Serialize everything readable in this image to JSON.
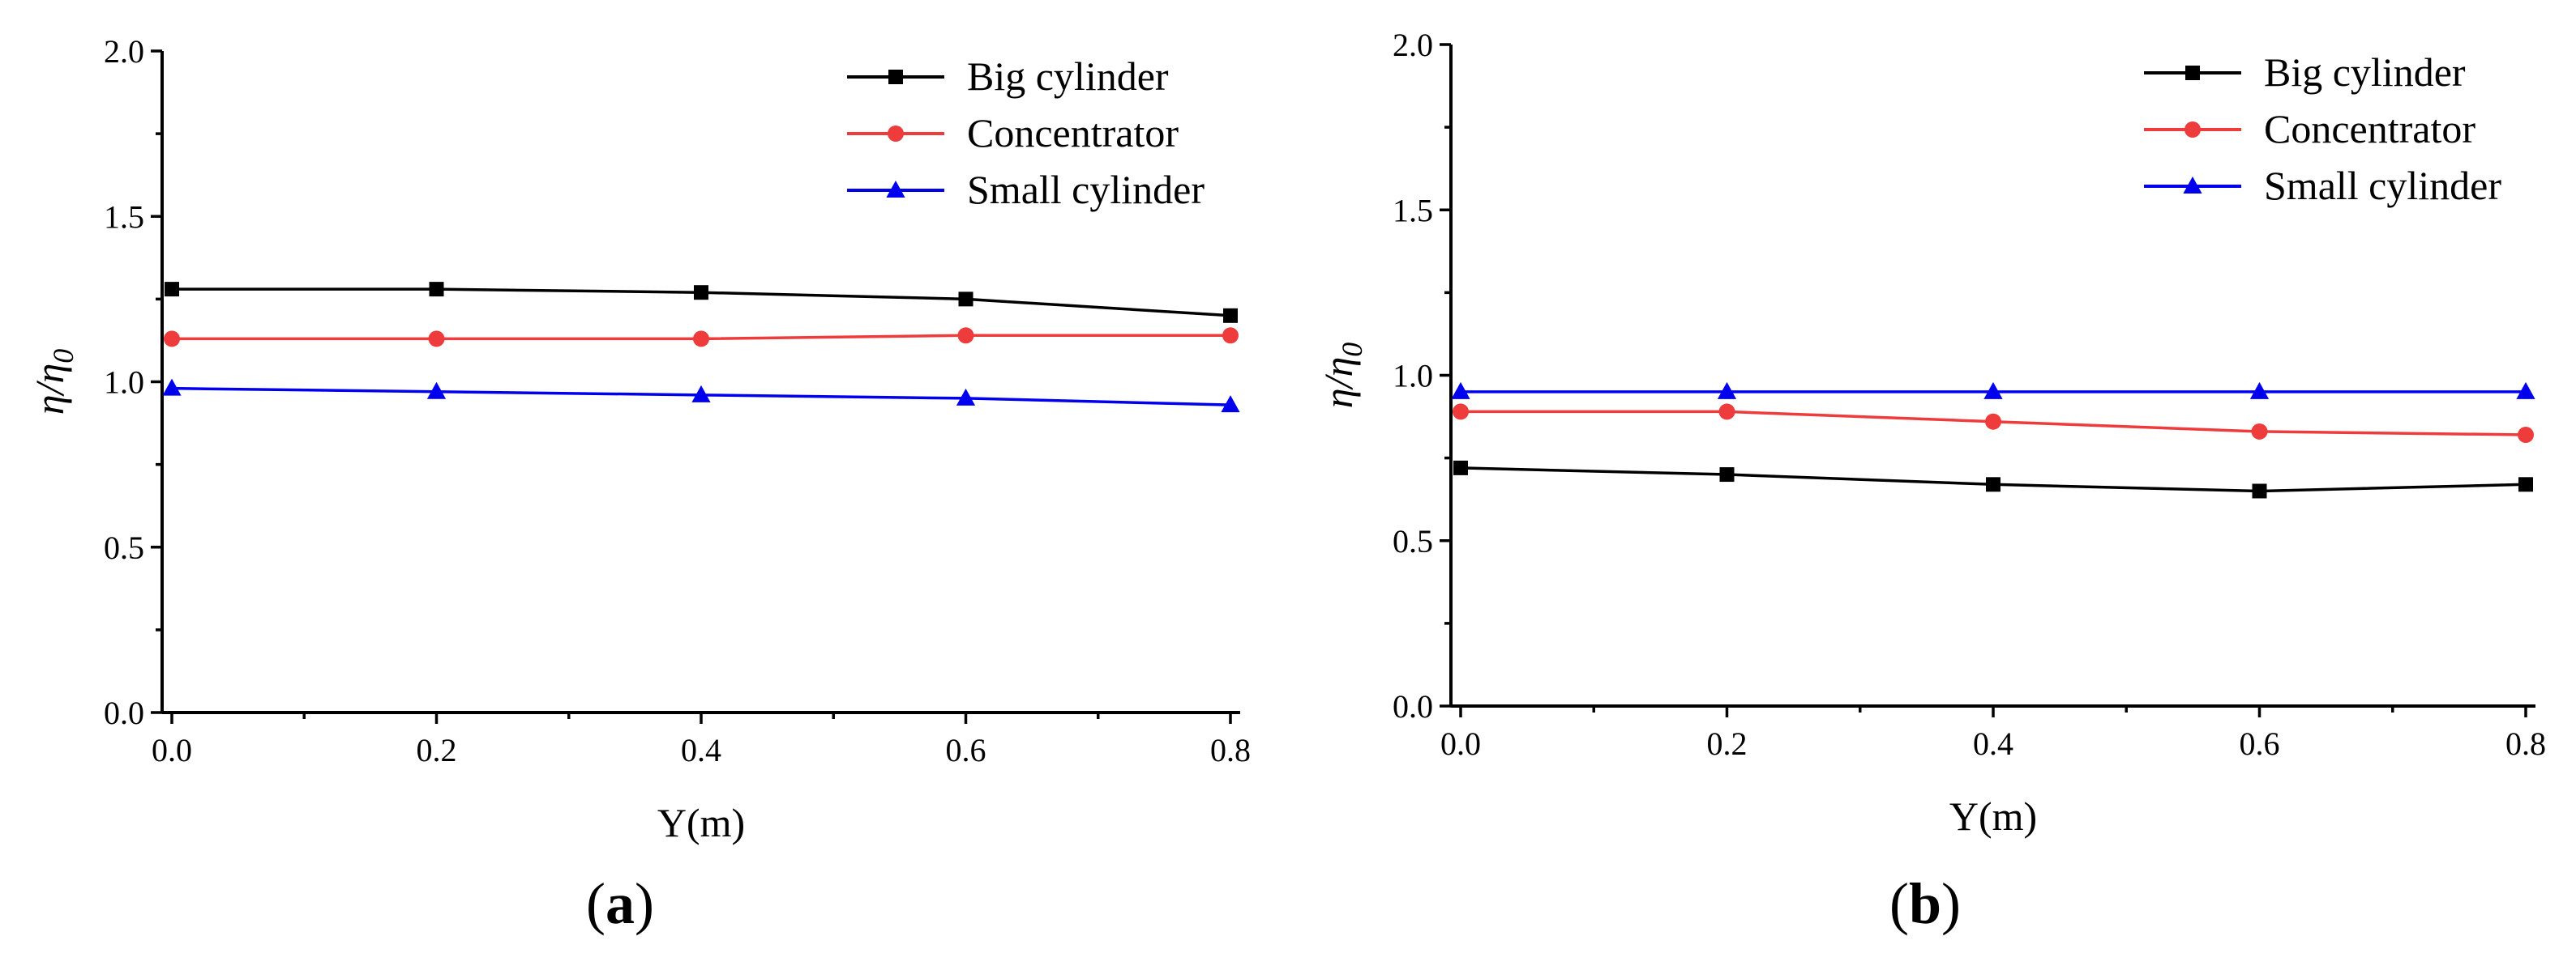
{
  "chart_data": [
    {
      "type": "line",
      "panel_label": "a",
      "xlabel": "Y(m)",
      "ylabel": "η/η0",
      "xlim": [
        0,
        0.8
      ],
      "ylim": [
        0,
        2.0
      ],
      "xticks": [
        "0.0",
        "0.2",
        "0.4",
        "0.6",
        "0.8"
      ],
      "yticks": [
        "0.0",
        "0.5",
        "1.0",
        "1.5",
        "2.0"
      ],
      "grid": false,
      "legend": "top-right",
      "x": [
        0,
        0.2,
        0.4,
        0.6,
        0.8
      ],
      "series": [
        {
          "name": "Big cylinder",
          "color": "#000000",
          "marker": "square",
          "values": [
            1.28,
            1.28,
            1.27,
            1.25,
            1.2
          ]
        },
        {
          "name": "Concentrator",
          "color": "#ee3b3b",
          "marker": "circle",
          "values": [
            1.13,
            1.13,
            1.13,
            1.14,
            1.14
          ]
        },
        {
          "name": "Small cylinder",
          "color": "#0000ee",
          "marker": "triangle",
          "values": [
            0.98,
            0.97,
            0.96,
            0.95,
            0.93
          ]
        }
      ]
    },
    {
      "type": "line",
      "panel_label": "b",
      "xlabel": "Y(m)",
      "ylabel": "η/η0",
      "xlim": [
        0,
        0.8
      ],
      "ylim": [
        0,
        2.0
      ],
      "xticks": [
        "0.0",
        "0.2",
        "0.4",
        "0.6",
        "0.8"
      ],
      "yticks": [
        "0.0",
        "0.5",
        "1.0",
        "1.5",
        "2.0"
      ],
      "grid": false,
      "legend": "top-right",
      "x": [
        0,
        0.2,
        0.4,
        0.6,
        0.8
      ],
      "series": [
        {
          "name": "Big cylinder",
          "color": "#000000",
          "marker": "square",
          "values": [
            0.72,
            0.7,
            0.67,
            0.65,
            0.67
          ]
        },
        {
          "name": "Concentrator",
          "color": "#ee3b3b",
          "marker": "circle",
          "values": [
            0.89,
            0.89,
            0.86,
            0.83,
            0.82
          ]
        },
        {
          "name": "Small cylinder",
          "color": "#0000ee",
          "marker": "triangle",
          "values": [
            0.95,
            0.95,
            0.95,
            0.95,
            0.95
          ]
        }
      ]
    }
  ]
}
